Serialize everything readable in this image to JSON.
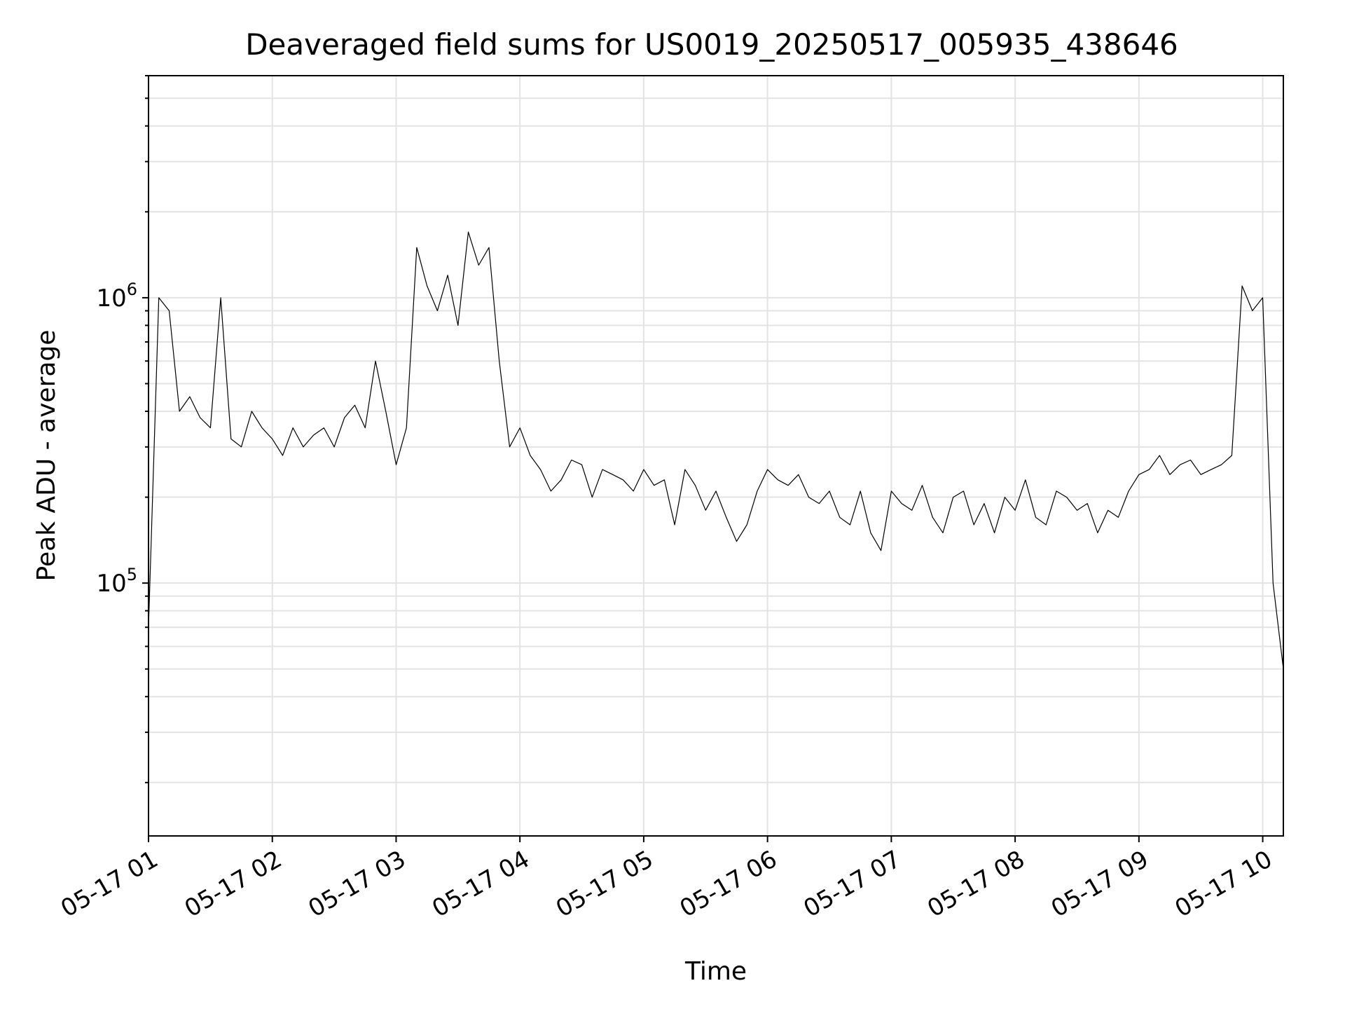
{
  "chart_data": {
    "type": "line",
    "title": "Deaveraged field sums for US0019_20250517_005935_438646",
    "xlabel": "Time",
    "ylabel": "Peak ADU - average",
    "yscale": "log",
    "ylim": [
      13000,
      6000000
    ],
    "xlim": [
      "2025-05-17T01:00",
      "2025-05-17T10:10"
    ],
    "grid": true,
    "x_ticks": [
      "05-17 01",
      "05-17 02",
      "05-17 03",
      "05-17 04",
      "05-17 05",
      "05-17 06",
      "05-17 07",
      "05-17 08",
      "05-17 09",
      "05-17 10"
    ],
    "y_ticks": [
      {
        "base": "10",
        "exp": "5",
        "value": 100000
      },
      {
        "base": "10",
        "exp": "6",
        "value": 1000000
      }
    ],
    "series": [
      {
        "color": "#000000",
        "x": [
          "2025-05-17T01:00",
          "2025-05-17T01:05",
          "2025-05-17T01:10",
          "2025-05-17T01:15",
          "2025-05-17T01:20",
          "2025-05-17T01:25",
          "2025-05-17T01:30",
          "2025-05-17T01:35",
          "2025-05-17T01:40",
          "2025-05-17T01:45",
          "2025-05-17T01:50",
          "2025-05-17T01:55",
          "2025-05-17T02:00",
          "2025-05-17T02:05",
          "2025-05-17T02:10",
          "2025-05-17T02:15",
          "2025-05-17T02:20",
          "2025-05-17T02:25",
          "2025-05-17T02:30",
          "2025-05-17T02:35",
          "2025-05-17T02:40",
          "2025-05-17T02:45",
          "2025-05-17T02:50",
          "2025-05-17T02:55",
          "2025-05-17T03:00",
          "2025-05-17T03:05",
          "2025-05-17T03:10",
          "2025-05-17T03:15",
          "2025-05-17T03:20",
          "2025-05-17T03:25",
          "2025-05-17T03:30",
          "2025-05-17T03:35",
          "2025-05-17T03:40",
          "2025-05-17T03:45",
          "2025-05-17T03:50",
          "2025-05-17T03:55",
          "2025-05-17T04:00",
          "2025-05-17T04:05",
          "2025-05-17T04:10",
          "2025-05-17T04:15",
          "2025-05-17T04:20",
          "2025-05-17T04:25",
          "2025-05-17T04:30",
          "2025-05-17T04:35",
          "2025-05-17T04:40",
          "2025-05-17T04:45",
          "2025-05-17T04:50",
          "2025-05-17T04:55",
          "2025-05-17T05:00",
          "2025-05-17T05:05",
          "2025-05-17T05:10",
          "2025-05-17T05:15",
          "2025-05-17T05:20",
          "2025-05-17T05:25",
          "2025-05-17T05:30",
          "2025-05-17T05:35",
          "2025-05-17T05:40",
          "2025-05-17T05:45",
          "2025-05-17T05:50",
          "2025-05-17T05:55",
          "2025-05-17T06:00",
          "2025-05-17T06:05",
          "2025-05-17T06:10",
          "2025-05-17T06:15",
          "2025-05-17T06:20",
          "2025-05-17T06:25",
          "2025-05-17T06:30",
          "2025-05-17T06:35",
          "2025-05-17T06:40",
          "2025-05-17T06:45",
          "2025-05-17T06:50",
          "2025-05-17T06:55",
          "2025-05-17T07:00",
          "2025-05-17T07:05",
          "2025-05-17T07:10",
          "2025-05-17T07:15",
          "2025-05-17T07:20",
          "2025-05-17T07:25",
          "2025-05-17T07:30",
          "2025-05-17T07:35",
          "2025-05-17T07:40",
          "2025-05-17T07:45",
          "2025-05-17T07:50",
          "2025-05-17T07:55",
          "2025-05-17T08:00",
          "2025-05-17T08:05",
          "2025-05-17T08:10",
          "2025-05-17T08:15",
          "2025-05-17T08:20",
          "2025-05-17T08:25",
          "2025-05-17T08:30",
          "2025-05-17T08:35",
          "2025-05-17T08:40",
          "2025-05-17T08:45",
          "2025-05-17T08:50",
          "2025-05-17T08:55",
          "2025-05-17T09:00",
          "2025-05-17T09:05",
          "2025-05-17T09:10",
          "2025-05-17T09:15",
          "2025-05-17T09:20",
          "2025-05-17T09:25",
          "2025-05-17T09:30",
          "2025-05-17T09:35",
          "2025-05-17T09:40",
          "2025-05-17T09:45",
          "2025-05-17T09:50",
          "2025-05-17T09:55",
          "2025-05-17T10:00",
          "2025-05-17T10:05",
          "2025-05-17T10:10"
        ],
        "y": [
          70000,
          1000000,
          900000,
          400000,
          450000,
          380000,
          350000,
          1000000,
          320000,
          300000,
          400000,
          350000,
          320000,
          280000,
          350000,
          300000,
          330000,
          350000,
          300000,
          380000,
          420000,
          350000,
          600000,
          400000,
          260000,
          350000,
          1500000,
          1100000,
          900000,
          1200000,
          800000,
          1700000,
          1300000,
          1500000,
          600000,
          300000,
          350000,
          280000,
          250000,
          210000,
          230000,
          270000,
          260000,
          200000,
          250000,
          240000,
          230000,
          210000,
          250000,
          220000,
          230000,
          160000,
          250000,
          220000,
          180000,
          210000,
          170000,
          140000,
          160000,
          210000,
          250000,
          230000,
          220000,
          240000,
          200000,
          190000,
          210000,
          170000,
          160000,
          210000,
          150000,
          130000,
          210000,
          190000,
          180000,
          220000,
          170000,
          150000,
          200000,
          210000,
          160000,
          190000,
          150000,
          200000,
          180000,
          230000,
          170000,
          160000,
          210000,
          200000,
          180000,
          190000,
          150000,
          180000,
          170000,
          210000,
          240000,
          250000,
          280000,
          240000,
          260000,
          270000,
          240000,
          250000,
          260000,
          280000,
          1100000,
          900000,
          1000000,
          100000,
          50000
        ]
      }
    ]
  }
}
